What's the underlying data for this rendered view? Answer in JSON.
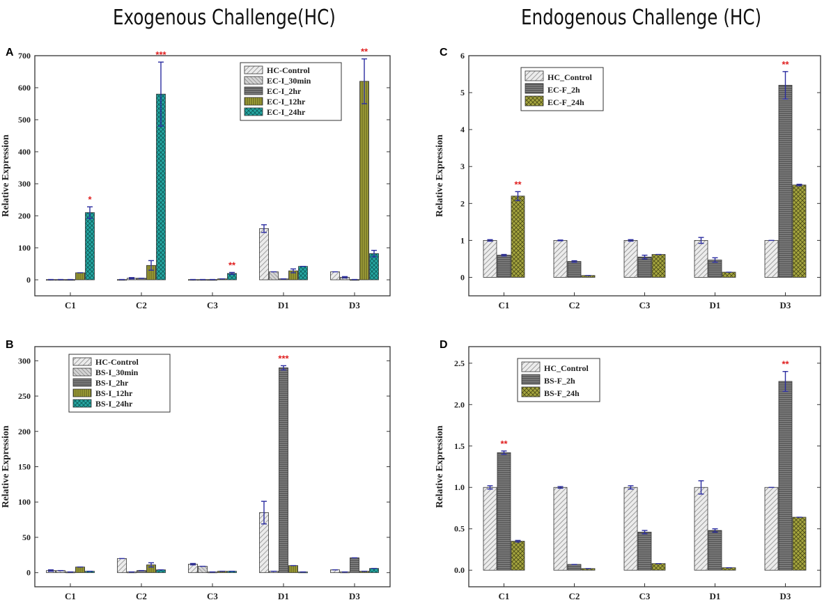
{
  "titles": {
    "left": "Exogenous Challenge(HC)",
    "right": "Endogenous Challenge (HC)"
  },
  "colors": {
    "light_gray": "#e4e4e4",
    "mid_gray": "#c3c3c3",
    "dark_gray": "#6e6e6e",
    "olive": "#8a8a2c",
    "teal": "#1e9a96",
    "error_bar": "#2a2ca0",
    "significance": "#e02020"
  },
  "chart_data": [
    {
      "panel": "A",
      "type": "bar",
      "ylabel": "Relative Expression",
      "ylim": [
        -50,
        700
      ],
      "yticks": [
        0,
        100,
        200,
        300,
        400,
        500,
        600,
        700
      ],
      "categories": [
        "C1",
        "C2",
        "C3",
        "D1",
        "D3"
      ],
      "legend_position": "top-right",
      "series": [
        {
          "name": "HC-Control",
          "style": "light",
          "values": [
            1,
            1,
            1,
            160,
            25
          ],
          "errors": [
            0,
            0,
            0,
            12,
            0
          ]
        },
        {
          "name": "EC-I_30min",
          "style": "mid",
          "values": [
            1,
            5,
            1,
            25,
            8
          ],
          "errors": [
            0,
            2,
            0,
            0,
            2
          ]
        },
        {
          "name": "EC-I_2hr",
          "style": "dark",
          "values": [
            1,
            5,
            1,
            3,
            1
          ],
          "errors": [
            0,
            0,
            0,
            0,
            0
          ]
        },
        {
          "name": "EC-I_12hr",
          "style": "olive",
          "values": [
            22,
            45,
            3,
            28,
            620
          ],
          "errors": [
            0,
            15,
            0,
            6,
            70
          ]
        },
        {
          "name": "EC-I_24hr",
          "style": "teal",
          "values": [
            210,
            580,
            20,
            42,
            82
          ],
          "errors": [
            18,
            100,
            3,
            0,
            10
          ]
        }
      ],
      "significance": [
        {
          "category": "C1",
          "label": "*"
        },
        {
          "category": "C2",
          "label": "***"
        },
        {
          "category": "C3",
          "label": "**"
        },
        {
          "category": "D3",
          "label": "**"
        }
      ]
    },
    {
      "panel": "B",
      "type": "bar",
      "ylabel": "Relative Expression",
      "ylim": [
        -20,
        320
      ],
      "yticks": [
        0,
        50,
        100,
        150,
        200,
        250,
        300
      ],
      "categories": [
        "C1",
        "C2",
        "C3",
        "D1",
        "D3"
      ],
      "legend_position": "top-left",
      "series": [
        {
          "name": "HC-Control",
          "style": "light",
          "values": [
            3,
            20,
            12,
            85,
            4
          ],
          "errors": [
            1,
            0,
            1,
            16,
            0
          ]
        },
        {
          "name": "BS-I_30min",
          "style": "mid",
          "values": [
            3,
            1,
            9,
            2,
            1
          ],
          "errors": [
            0,
            0,
            0,
            0,
            0
          ]
        },
        {
          "name": "BS-I_2hr",
          "style": "dark",
          "values": [
            1,
            3,
            1,
            290,
            21
          ],
          "errors": [
            0,
            0,
            0,
            3,
            0
          ]
        },
        {
          "name": "BS-I_12hr",
          "style": "olive",
          "values": [
            8,
            11,
            2,
            10,
            2
          ],
          "errors": [
            0,
            3,
            0,
            0,
            0
          ]
        },
        {
          "name": "BS-I_24hr",
          "style": "teal",
          "values": [
            2,
            4,
            2,
            1,
            6
          ],
          "errors": [
            0,
            0,
            0,
            0,
            0
          ]
        }
      ],
      "significance": [
        {
          "category": "D1",
          "label": "***"
        }
      ]
    },
    {
      "panel": "C",
      "type": "bar",
      "ylabel": "Relative Expression",
      "ylim": [
        -0.5,
        6
      ],
      "yticks": [
        0,
        1,
        2,
        3,
        4,
        5,
        6
      ],
      "categories": [
        "C1",
        "C2",
        "C3",
        "D1",
        "D3"
      ],
      "legend_position": "top-center",
      "series": [
        {
          "name": "HC_Control",
          "style": "light",
          "values": [
            1.0,
            1.0,
            1.0,
            1.0,
            1.0
          ],
          "errors": [
            0.02,
            0.01,
            0.02,
            0.08,
            0
          ]
        },
        {
          "name": "EC-F_2h",
          "style": "dark",
          "values": [
            0.6,
            0.43,
            0.55,
            0.47,
            5.2
          ],
          "errors": [
            0.02,
            0.02,
            0.05,
            0.06,
            0.37
          ]
        },
        {
          "name": "EC-F_24h",
          "style": "olive",
          "values": [
            2.2,
            0.05,
            0.62,
            0.14,
            2.5
          ],
          "errors": [
            0.12,
            0,
            0,
            0,
            0.02
          ]
        }
      ],
      "significance": [
        {
          "category": "C1",
          "label": "**"
        },
        {
          "category": "D3",
          "label": "**"
        }
      ]
    },
    {
      "panel": "D",
      "type": "bar",
      "ylabel": "Relative Expression",
      "ylim": [
        -0.2,
        2.7
      ],
      "yticks": [
        0.0,
        0.5,
        1.0,
        1.5,
        2.0,
        2.5
      ],
      "ytick_labels": [
        "0.0",
        "0.5",
        "1.0",
        "1.5",
        "2.0",
        "2.5"
      ],
      "categories": [
        "C1",
        "C2",
        "C3",
        "D1",
        "D3"
      ],
      "legend_position": "top-center",
      "series": [
        {
          "name": "HC_Control",
          "style": "light",
          "values": [
            1.0,
            1.0,
            1.0,
            1.0,
            1.0
          ],
          "errors": [
            0.02,
            0.01,
            0.02,
            0.08,
            0
          ]
        },
        {
          "name": "BS-F_2h",
          "style": "dark",
          "values": [
            1.42,
            0.07,
            0.46,
            0.48,
            2.28
          ],
          "errors": [
            0.02,
            0,
            0.02,
            0.02,
            0.12
          ]
        },
        {
          "name": "BS-F_24h",
          "style": "olive",
          "values": [
            0.35,
            0.02,
            0.08,
            0.03,
            0.64
          ],
          "errors": [
            0.01,
            0,
            0,
            0,
            0
          ]
        }
      ],
      "significance": [
        {
          "category": "C1",
          "label": "**"
        },
        {
          "category": "D3",
          "label": "**"
        }
      ]
    }
  ]
}
